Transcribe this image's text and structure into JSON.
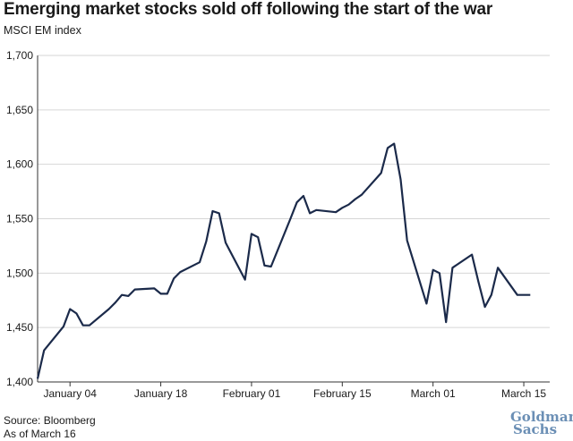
{
  "title": "Emerging market stocks sold off following the start of the war",
  "subtitle": "MSCI EM index",
  "source": "Source: Bloomberg",
  "as_of": "As of March 16",
  "logo": {
    "line1": "Goldman",
    "line2": "Sachs"
  },
  "colors": {
    "line": "#1b2a4a",
    "grid": "#d6d6d6",
    "axis": "#333333",
    "logo": "#6b8fb5"
  },
  "chart_data": {
    "type": "line",
    "title": "Emerging market stocks sold off following the start of the war",
    "subtitle": "MSCI EM index",
    "xlabel": "",
    "ylabel": "",
    "ylim": [
      1400,
      1700
    ],
    "yticks": [
      1400,
      1450,
      1500,
      1550,
      1600,
      1650,
      1700
    ],
    "ytick_labels": [
      "1,400",
      "1,450",
      "1,500",
      "1,550",
      "1,600",
      "1,650",
      "1,700"
    ],
    "xlim": [
      "2021-12-30",
      "2022-03-19"
    ],
    "xticks": [
      "2022-01-04",
      "2022-01-18",
      "2022-02-01",
      "2022-02-15",
      "2022-03-01",
      "2022-03-15"
    ],
    "xtick_labels": [
      "January 04",
      "January 18",
      "February 01",
      "February 15",
      "March 01",
      "March 15"
    ],
    "grid": true,
    "series": [
      {
        "x": [
          "2021-12-30",
          "2021-12-31",
          "2022-01-03",
          "2022-01-04",
          "2022-01-05",
          "2022-01-06",
          "2022-01-07",
          "2022-01-10",
          "2022-01-11",
          "2022-01-12",
          "2022-01-13",
          "2022-01-14",
          "2022-01-17",
          "2022-01-18",
          "2022-01-19",
          "2022-01-20",
          "2022-01-21",
          "2022-01-24",
          "2022-01-25",
          "2022-01-26",
          "2022-01-27",
          "2022-01-28",
          "2022-01-31",
          "2022-02-01",
          "2022-02-02",
          "2022-02-03",
          "2022-02-04",
          "2022-02-07",
          "2022-02-08",
          "2022-02-09",
          "2022-02-10",
          "2022-02-11",
          "2022-02-14",
          "2022-02-15",
          "2022-02-16",
          "2022-02-17",
          "2022-02-18",
          "2022-02-21",
          "2022-02-22",
          "2022-02-23",
          "2022-02-24",
          "2022-02-25",
          "2022-02-28",
          "2022-03-01",
          "2022-03-02",
          "2022-03-03",
          "2022-03-04",
          "2022-03-07",
          "2022-03-08",
          "2022-03-09",
          "2022-03-10",
          "2022-03-11",
          "2022-03-14",
          "2022-03-15",
          "2022-03-16"
        ],
        "values": [
          1403,
          1429,
          1451,
          1467,
          1463,
          1452,
          1452,
          1467,
          1473,
          1480,
          1479,
          1485,
          1486,
          1481,
          1481,
          1495,
          1501,
          1510,
          1529,
          1557,
          1555,
          1528,
          1494,
          1536,
          1533,
          1507,
          1506,
          1550,
          1565,
          1571,
          1555,
          1558,
          1556,
          1560,
          1563,
          1568,
          1572,
          1592,
          1615,
          1619,
          1586,
          1530,
          1472,
          1503,
          1500,
          1455,
          1505,
          1517,
          1492,
          1469,
          1480,
          1505,
          1480,
          1480,
          1480
        ]
      }
    ]
  }
}
